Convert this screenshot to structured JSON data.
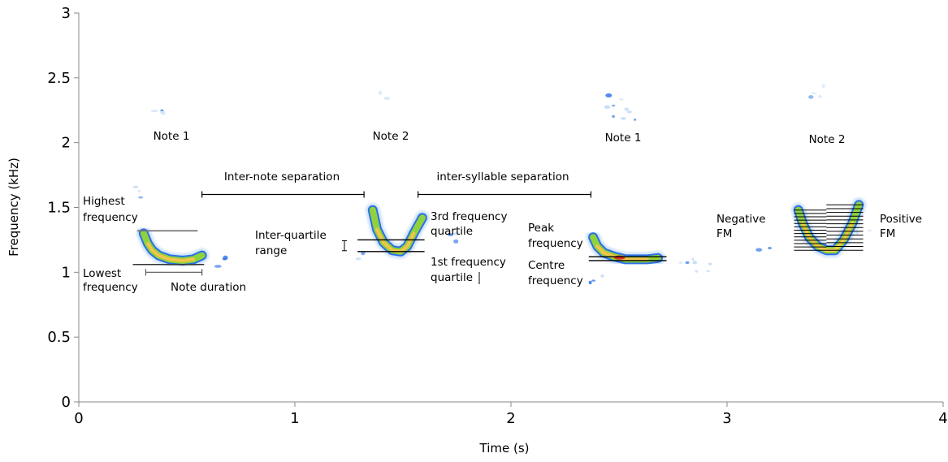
{
  "chart_data": {
    "type": "spectrogram",
    "xlabel": "Time (s)",
    "ylabel": "Frequency (kHz)",
    "xlim": [
      0,
      4
    ],
    "ylim": [
      0,
      3
    ],
    "xticks": [
      {
        "v": 0,
        "label": "0"
      },
      {
        "v": 1,
        "label": "1"
      },
      {
        "v": 2,
        "label": "2"
      },
      {
        "v": 3,
        "label": "3"
      },
      {
        "v": 4,
        "label": "4"
      }
    ],
    "yticks": [
      {
        "v": 0,
        "label": "0"
      },
      {
        "v": 0.5,
        "label": "0.5"
      },
      {
        "v": 1,
        "label": "1"
      },
      {
        "v": 1.5,
        "label": "1.5"
      },
      {
        "v": 2,
        "label": "2"
      },
      {
        "v": 2.5,
        "label": "2.5"
      },
      {
        "v": 3,
        "label": "3"
      }
    ],
    "grid": false,
    "colors": {
      "low": "#2b6fe8",
      "mid": "#8fd23c",
      "high": "#f2c44a",
      "peak": "#e0301e",
      "faint": "#bcd8f7"
    },
    "notes": [
      {
        "label": "Note 1",
        "shape": "fall-rise",
        "t": [
          0.3,
          0.32,
          0.34,
          0.37,
          0.42,
          0.48,
          0.53,
          0.57
        ],
        "f": [
          1.3,
          1.22,
          1.17,
          1.13,
          1.1,
          1.09,
          1.1,
          1.13
        ]
      },
      {
        "label": "Note 2",
        "shape": "u",
        "t": [
          1.36,
          1.38,
          1.41,
          1.45,
          1.49,
          1.52,
          1.55,
          1.59
        ],
        "f": [
          1.48,
          1.33,
          1.23,
          1.17,
          1.16,
          1.2,
          1.3,
          1.42
        ]
      },
      {
        "label": "Note 1",
        "shape": "fall-rise",
        "t": [
          2.38,
          2.4,
          2.43,
          2.48,
          2.53,
          2.58,
          2.63,
          2.68
        ],
        "f": [
          1.27,
          1.2,
          1.15,
          1.12,
          1.1,
          1.1,
          1.1,
          1.11
        ]
      },
      {
        "label": "Note 2",
        "shape": "u",
        "t": [
          3.33,
          3.35,
          3.38,
          3.42,
          3.46,
          3.5,
          3.54,
          3.58,
          3.61
        ],
        "f": [
          1.48,
          1.38,
          1.27,
          1.2,
          1.17,
          1.17,
          1.25,
          1.38,
          1.52
        ]
      }
    ],
    "annotations": {
      "inter_note": {
        "text": "Inter-note separation",
        "t0": 0.57,
        "t1": 1.32,
        "f": 1.6
      },
      "inter_syllable": {
        "text": "inter-syllable separation",
        "t0": 1.57,
        "t1": 2.37,
        "f": 1.6
      },
      "highest_freq": {
        "lines": [
          "Highest",
          "frequency"
        ],
        "f": 1.32,
        "t0": 0.27,
        "t1": 0.55
      },
      "lowest_freq": {
        "lines": [
          "Lowest",
          "frequency"
        ],
        "f": 1.06,
        "t0": 0.25,
        "t1": 0.58
      },
      "note_duration": {
        "text": "Note duration",
        "t0": 0.31,
        "t1": 0.57,
        "f": 1.0
      },
      "iqr": {
        "lines": [
          "Inter-quartile",
          "range"
        ],
        "f_hi": 1.25,
        "f_lo": 1.16,
        "t0": 1.29,
        "t1": 1.6
      },
      "q3": {
        "lines": [
          "3rd frequency",
          "quartile"
        ]
      },
      "q1": {
        "lines": [
          "1st frequency",
          "quartile"
        ]
      },
      "peak": {
        "lines": [
          "Peak",
          "frequency"
        ],
        "f": 1.12
      },
      "centre": {
        "lines": [
          "Centre",
          "frequency"
        ],
        "f": 1.09
      },
      "neg_fm": {
        "lines": [
          "Negative",
          "FM"
        ]
      },
      "pos_fm": {
        "lines": [
          "Positive",
          "FM"
        ]
      }
    }
  }
}
